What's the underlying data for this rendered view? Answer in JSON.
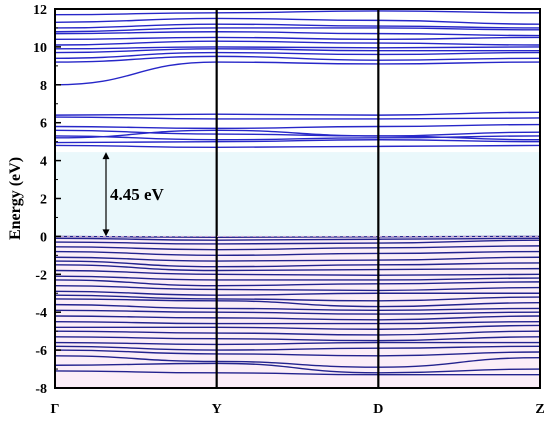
{
  "chart_data": {
    "type": "line",
    "ylabel": "Energy (eV)",
    "ylim": [
      -8,
      12
    ],
    "yticks": [
      -8,
      -6,
      -4,
      -2,
      0,
      2,
      4,
      6,
      8,
      10,
      12
    ],
    "ytick_labels": [
      "-8",
      "-6",
      "-4",
      "-2",
      "0",
      "2",
      "4",
      "6",
      "8",
      "10",
      "12"
    ],
    "xlim": [
      0,
      3
    ],
    "xticks": [
      0,
      1,
      2,
      3
    ],
    "xtick_labels": [
      "Γ",
      "Y",
      "D",
      "Z"
    ],
    "grid": false,
    "band_gap": {
      "label": "4.45 eV",
      "valence_top": 0,
      "conduction_bottom": 4.45,
      "fill_color": "#eaf8fb"
    },
    "valence_fill_color": "#fbeef8",
    "band_color": "#2727c8",
    "valence_band_color": "#23238e",
    "series": [
      {
        "values": [
          6.4,
          6.45,
          6.4,
          6.55
        ]
      },
      {
        "values": [
          6.3,
          6.2,
          6.2,
          6.25
        ]
      },
      {
        "values": [
          5.8,
          5.7,
          5.8,
          5.9
        ]
      },
      {
        "values": [
          5.6,
          5.4,
          5.3,
          5.5
        ]
      },
      {
        "values": [
          5.3,
          5.1,
          5.2,
          5.3
        ]
      },
      {
        "values": [
          5.2,
          5.6,
          5.3,
          5.1
        ]
      },
      {
        "values": [
          4.95,
          5.0,
          5.1,
          5.0
        ]
      },
      {
        "values": [
          4.8,
          4.7,
          4.75,
          4.8
        ]
      },
      {
        "values": [
          8.0,
          9.2,
          9.1,
          9.2
        ]
      },
      {
        "values": [
          9.2,
          9.5,
          9.3,
          9.4
        ]
      },
      {
        "values": [
          9.4,
          9.7,
          9.6,
          9.7
        ]
      },
      {
        "values": [
          9.7,
          9.9,
          9.8,
          9.8
        ]
      },
      {
        "values": [
          9.9,
          10.0,
          9.95,
          10.0
        ]
      },
      {
        "values": [
          10.1,
          10.3,
          10.2,
          10.1
        ]
      },
      {
        "values": [
          10.4,
          10.5,
          10.4,
          10.5
        ]
      },
      {
        "values": [
          10.7,
          10.8,
          10.7,
          10.6
        ]
      },
      {
        "values": [
          10.8,
          11.0,
          11.0,
          10.9
        ]
      },
      {
        "values": [
          11.0,
          11.2,
          11.1,
          11.0
        ]
      },
      {
        "values": [
          11.3,
          11.5,
          11.4,
          11.2
        ]
      },
      {
        "values": [
          11.7,
          11.8,
          11.9,
          11.8
        ]
      },
      {
        "values": [
          0.0,
          -0.05,
          -0.02,
          0.0
        ]
      },
      {
        "values": [
          -0.1,
          -0.2,
          -0.15,
          -0.1
        ]
      },
      {
        "values": [
          -0.3,
          -0.4,
          -0.35,
          -0.2
        ]
      },
      {
        "values": [
          -0.55,
          -0.7,
          -0.6,
          -0.5
        ]
      },
      {
        "values": [
          -0.8,
          -1.0,
          -0.9,
          -0.8
        ]
      },
      {
        "values": [
          -1.1,
          -1.3,
          -1.25,
          -1.1
        ]
      },
      {
        "values": [
          -1.3,
          -1.6,
          -1.5,
          -1.4
        ]
      },
      {
        "values": [
          -1.5,
          -1.8,
          -1.75,
          -1.7
        ]
      },
      {
        "values": [
          -1.8,
          -2.0,
          -2.05,
          -2.0
        ]
      },
      {
        "values": [
          -2.1,
          -2.3,
          -2.3,
          -2.2
        ]
      },
      {
        "values": [
          -2.3,
          -2.6,
          -2.5,
          -2.4
        ]
      },
      {
        "values": [
          -2.6,
          -2.8,
          -2.85,
          -2.7
        ]
      },
      {
        "values": [
          -2.9,
          -3.1,
          -3.0,
          -3.0
        ]
      },
      {
        "values": [
          -3.1,
          -3.3,
          -3.4,
          -3.2
        ]
      },
      {
        "values": [
          -3.3,
          -3.4,
          -3.7,
          -3.5
        ]
      },
      {
        "values": [
          -3.6,
          -3.8,
          -3.9,
          -3.8
        ]
      },
      {
        "values": [
          -3.9,
          -4.0,
          -4.1,
          -4.0
        ]
      },
      {
        "values": [
          -4.2,
          -4.3,
          -4.4,
          -4.2
        ]
      },
      {
        "values": [
          -4.5,
          -4.6,
          -4.6,
          -4.5
        ]
      },
      {
        "values": [
          -4.8,
          -4.8,
          -4.9,
          -4.7
        ]
      },
      {
        "values": [
          -5.0,
          -5.1,
          -5.2,
          -5.0
        ]
      },
      {
        "values": [
          -5.3,
          -5.4,
          -5.5,
          -5.3
        ]
      },
      {
        "values": [
          -5.6,
          -5.7,
          -5.6,
          -5.6
        ]
      },
      {
        "values": [
          -5.8,
          -6.0,
          -5.9,
          -5.8
        ]
      },
      {
        "values": [
          -6.0,
          -6.2,
          -6.3,
          -6.1
        ]
      },
      {
        "values": [
          -6.3,
          -6.6,
          -6.9,
          -6.4
        ]
      },
      {
        "values": [
          -6.8,
          -6.7,
          -7.2,
          -7.0
        ]
      },
      {
        "values": [
          -7.1,
          -7.2,
          -7.3,
          -7.3
        ]
      }
    ]
  }
}
